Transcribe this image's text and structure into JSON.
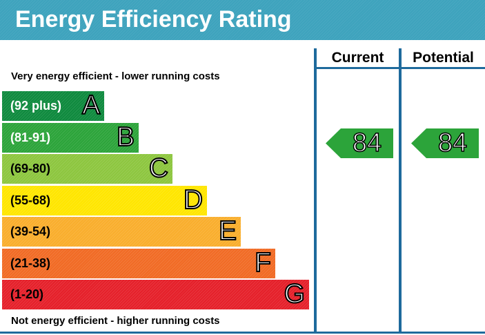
{
  "header": {
    "title": "Energy Efficiency Rating"
  },
  "notes": {
    "top": "Very energy efficient - lower running costs",
    "bottom": "Not energy efficient - higher running costs"
  },
  "columns": {
    "current": "Current",
    "potential": "Potential"
  },
  "chart_data": {
    "type": "bar",
    "title": "Energy Efficiency Rating",
    "categories": [
      "A",
      "B",
      "C",
      "D",
      "E",
      "F",
      "G"
    ],
    "bands": [
      {
        "letter": "A",
        "range": "(92 plus)",
        "color": "#0f8a3e",
        "dark_text": false
      },
      {
        "letter": "B",
        "range": "(81-91)",
        "color": "#2ca43a",
        "dark_text": false
      },
      {
        "letter": "C",
        "range": "(69-80)",
        "color": "#8dc63f",
        "dark_text": true
      },
      {
        "letter": "D",
        "range": "(55-68)",
        "color": "#ffe600",
        "dark_text": true
      },
      {
        "letter": "E",
        "range": "(39-54)",
        "color": "#f9ae2d",
        "dark_text": true
      },
      {
        "letter": "F",
        "range": "(21-38)",
        "color": "#f16b25",
        "dark_text": true
      },
      {
        "letter": "G",
        "range": "(1-20)",
        "color": "#e5202a",
        "dark_text": true
      }
    ],
    "ratings": {
      "current": {
        "value": "84",
        "band": "B",
        "color": "#2ca43a"
      },
      "potential": {
        "value": "84",
        "band": "B",
        "color": "#2ca43a"
      }
    }
  }
}
